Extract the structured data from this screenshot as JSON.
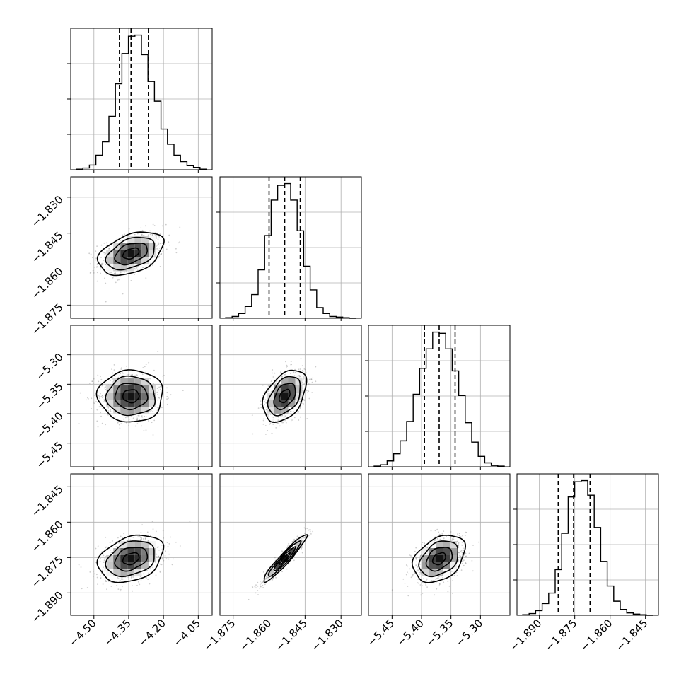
{
  "chart_data": {
    "type": "corner",
    "xlabel": "",
    "ylabel": "",
    "title": "",
    "grid": true,
    "colors": {
      "line": "#000000",
      "grid": "#b0b0b0",
      "points": "#6f6f6f"
    },
    "parameters": [
      {
        "range": [
          -4.6,
          -3.99
        ],
        "ticks": [
          -4.5,
          -4.35,
          -4.2,
          -4.05
        ],
        "tick_labels": [
          "−4.50",
          "−4.35",
          "−4.20",
          "−4.05"
        ],
        "mean": -4.34,
        "sd": 0.07,
        "quantiles": [
          -4.39,
          -4.34,
          -4.265
        ],
        "hist_counts": [
          1,
          3,
          8,
          25,
          48,
          92,
          148,
          200,
          230,
          232,
          198,
          152,
          118,
          70,
          44,
          25,
          14,
          7,
          4,
          1
        ]
      },
      {
        "range": [
          -1.8805,
          -1.8215
        ],
        "ticks": [
          -1.875,
          -1.86,
          -1.845,
          -1.83
        ],
        "tick_labels": [
          "−1.875",
          "−1.860",
          "−1.845",
          "−1.830"
        ],
        "mean": -1.8535,
        "sd": 0.0045,
        "quantiles": [
          -1.86,
          -1.8535,
          -1.847
        ],
        "hist_counts": [
          1,
          3,
          8,
          20,
          40,
          82,
          140,
          200,
          225,
          228,
          200,
          148,
          88,
          48,
          18,
          8,
          3,
          2,
          1,
          0
        ]
      },
      {
        "range": [
          -5.49,
          -5.25
        ],
        "ticks": [
          -5.45,
          -5.4,
          -5.35,
          -5.3
        ],
        "tick_labels": [
          "−5.45",
          "−5.40",
          "−5.35",
          "−5.30"
        ],
        "mean": -5.37,
        "sd": 0.022,
        "quantiles": [
          -5.395,
          -5.37,
          -5.343
        ],
        "hist_counts": [
          1,
          3,
          9,
          20,
          40,
          70,
          112,
          152,
          182,
          208,
          206,
          182,
          148,
          110,
          68,
          38,
          16,
          6,
          2,
          1
        ]
      },
      {
        "range": [
          -1.8995,
          -1.8395
        ],
        "ticks": [
          -1.89,
          -1.875,
          -1.86,
          -1.845
        ],
        "tick_labels": [
          "−1.890",
          "−1.875",
          "−1.860",
          "−1.845"
        ],
        "mean": -1.8755,
        "sd": 0.005,
        "quantiles": [
          -1.882,
          -1.8755,
          -1.8685
        ],
        "hist_counts": [
          1,
          3,
          8,
          20,
          38,
          78,
          140,
          202,
          228,
          230,
          205,
          150,
          92,
          50,
          24,
          10,
          4,
          2,
          1,
          0
        ]
      }
    ],
    "correlations": {
      "1,0": 0.4,
      "2,0": 0.0,
      "2,1": 0.42,
      "3,0": 0.3,
      "3,1": 0.95,
      "3,2": 0.35
    },
    "contour_levels": [
      0.5,
      1.0,
      1.5,
      2.0
    ]
  }
}
